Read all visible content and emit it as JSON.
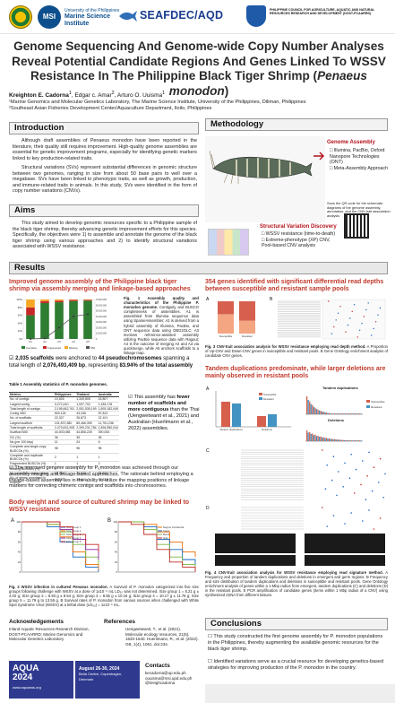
{
  "header": {
    "msi_sub": "University of the Philippines",
    "msi_name": "Marine Science Institute",
    "msi_short": "MSI",
    "seafdec": "SEAFDEC/AQD",
    "pcaarrd": "PHILIPPINE COUNCIL FOR AGRICULTURE, AQUATIC AND NATURAL RESOURCES RESEARCH AND DEVELOPMENT (DOST-PCAARRD)"
  },
  "title_main": "Genome Sequencing And Genome-wide Copy Number Analyses Reveal Potential Candidate Regions And Genes Linked To WSSV Resistance In The Philippine Black Tiger Shrimp (",
  "title_species": "Penaeus monodon",
  "title_end": ")",
  "authors": {
    "a1": "Kreighton E. Cadorna",
    "a1_sup": "1",
    "rest": ", Edgar c. Amar",
    "a2_sup": "2",
    "a3": ", Arturo O. Uuisma",
    "a3_sup": "1"
  },
  "affiliations": [
    "¹Marine Genomics and Molecular Genetics Laboratory, The Marine Science Institute, University of the Philippines, Diliman, Philippines",
    "²Southeast Asian Fisheries Development Center/Aquaculture Department, Iloilo, Philippines"
  ],
  "intro": {
    "heading": "Introduction",
    "p1": "Although draft assemblies of Penaeus monodon have been reported in the literature, their quality still requires improvement. High-quality genome assemblies are essential for genetic improvement programs, especially for identifying genetic markers linked to key production-related traits.",
    "p2": "Structural variations (SVs) represent substantial differences in genomic structure between two genomes, ranging in size from about 50 base pairs to well over a megabase. SVs have been linked to phenotypic traits, as well as growth, production, and immune-related traits in animals. In this study, SVs were identified in the form of copy number variations (CNVs)."
  },
  "aims": {
    "heading": "Aims",
    "p1": "This study aimed to develop genomic resources specific to a Philippine sample of the black tiger shrimp, thereby advancing genetic improvement efforts for this species. Specifically, the objectives were 1) to assemble and annotate the genome of the black tiger shrimp using various approaches and 2) to identify structural variations associated with WSSV resistance."
  },
  "methodology": {
    "heading": "Methodology",
    "genome_assembly": "Genome Assembly",
    "ga_items": [
      "Illumina, PacBio, Oxford Nanopore Technologies (ONT)",
      "Meta-Assembly Approach"
    ],
    "sv_detection": "Structural Variation Discovery",
    "sv_items": [
      "WSSV resistance (time-to-death)",
      "Extreme-phenotype (XP) CNV, Pool-based CNV analysis"
    ],
    "qr_note": "Scan the QR code for the schematic diagrams of the genome assembly, annotation, and the CNV-trait association analysis"
  },
  "results": {
    "heading": "Results",
    "sub1": "Improved genome assembly of the Philippine black tiger shrimp via assembly merging and linkage-based approaches",
    "fig1_cap_b": "Fig. 1 Assembly quality and characteristics of the Philippine P. monodon genome.",
    "fig1_cap": "Contiguity and BUSCO completeness of assemblies. A1 is assembled from Illumina sequence data using SparseAssembler; A2 is derived from a hybrid assembly of Illumina, PacBio, and ONT sequence data using DBG2OLC; A3 involves reference-assisted assembly utilizing PacBio sequence data with Ragout; A4 is the outcome of merging A2 and A3 via quickmerge, while A5 anchors scaffolds to a linkage map.",
    "stat1_pre": "2,035 scaffolds",
    "stat1_mid": " were anchored to ",
    "stat1_b2": "44 pseudochromosomes",
    "stat1_mid2": " spanning a total length of ",
    "stat1_b3": "2,076,493,409 bp",
    "stat1_mid3": ", representing ",
    "stat1_b4": "83.94% of the total assembly",
    "table_title": "Table 1 Assembly statistics of P. monodon genomes.",
    "table_headers": [
      "Metrics",
      "Philippines",
      "Thailand",
      "Australia"
    ],
    "table_rows": [
      [
        "No. of contigs",
        "10,526",
        "1,349,805",
        "43,807"
      ],
      [
        "Largest contig",
        "3,272,440",
        "1,097,702",
        "1,183,178"
      ],
      [
        "Total length of contigs",
        "2,195,662,761",
        "2,051,535,199",
        "1,893,182,049"
      ],
      [
        "Contig N50",
        "500,126",
        "43,336",
        "87,812"
      ],
      [
        "No. of scaffolds",
        "22,327",
        "26,873",
        "22,101"
      ],
      [
        "Largest scaffold",
        "131,870,380",
        "85,466,359",
        "11,751,236"
      ],
      [
        "Total length of scaffolds",
        "2,473,631,905",
        "2,390,231,784",
        "1,894,550,044"
      ],
      [
        "Scaffold N50",
        "44,000,085",
        "44,856,225",
        "390,054"
      ],
      [
        "GC (%)",
        "36",
        "35",
        "36"
      ],
      [
        "Ns (per 100 kbp)",
        "11",
        "24",
        "6"
      ],
      [
        "Complete and single-copy BUSCOs (%)",
        "98",
        "96",
        "95"
      ],
      [
        "Complete and duplicate BUSCOs (%)",
        "2",
        "1",
        "1"
      ],
      [
        "Fragmented BUSCOs (%)",
        "1",
        "1",
        "2"
      ],
      [
        "Missing BUSCOs (%)",
        "0",
        "1",
        "1"
      ],
      [
        "No. of protein-coding genes",
        "36,154",
        "25,948",
        "23,609"
      ],
      [
        "No. of genes annotated in Uniprot",
        "24,287",
        "20,610",
        "17,338"
      ]
    ],
    "fewer_pre": "This assembly has ",
    "fewer_b": "fewer number of scaffolds and more contiguous",
    "fewer_post": " than the Thai (Uengwetwanit et al., 2021) and Australian (Huerlimann et al., 2022) assemblies.",
    "improved_text": "The improved genome assembly for P. monodon was achieved through our assembly merging and linkage-based approaches. The rationale behind employing a linkage-based assembly lies in the ability to utilize the mapping positions of linkage markers for correcting chimeric contigs and scaffolds into chromosomes.",
    "sub2": "Body weight and source of cultured shrimp may be linked to WSSV resistance",
    "fig2_cap_b": "Fig. 2 WSSV infection in cultured Penaeus monodon.",
    "fig2_cap": "A Survival of P. monodon categorized into five size groups following challenge with WSSV at a dose of 1x10⁻⁵ mL LD₅₀ was not determined. Size group 1 = 5.21 g ± 4.02 g; Size group 2 = 6.93 g ± 8.54 g; Size group 3 = 8.55 g ± 10.16 g; Size group 4 = 10.17 g ± 11.78 g; Size group 5 = 11.79 g to 13.55 g. B Survival rates of P. monodon from various sources when challenged with White Spot Syndrome Virus (WSSV) at a lethal dose (LD₅₀) = 1x10⁻⁵ mL.",
    "sub3": "354 genes identified with significant differential read depths between susceptible and resistant sample pools",
    "fig3_cap_b": "Fig. 3 CNV-trait association analysis for WSSV resistance employing read depth method.",
    "fig3_cap": "A Proportion of Up-CNV and Down-CNV genes in susceptible and resistant pools. B Gene Ontology enrichment analysis of candidate CNV genes.",
    "sub4": "Tandem duplications predominate, while larger deletions are mainly observed in resistant pools",
    "tandem_label": "Tandem duplications",
    "deletions_label": "Deletions",
    "susceptible": "Susceptible",
    "resistant": "Resistant",
    "fig4_cap_b": "Fig. 4 CNV-trait association analysis for WSSV resistance employing read signature method.",
    "fig4_cap": "A Frequency and proportion of tandem duplications and deletions in emergent and germ regions. B Frequency and size distribution of tandem duplications and deletions in susceptible and resistant pools. Gene Ontology enrichment analysis of genes within a 1-Mbp radius from emergent, tandem duplications (C) and deletions (D) in the resistant pools. E PCR amplification of candidate genes (items within 1 Mbp radius of a CNV) using synthesized cDNA from different tissues."
  },
  "ack": {
    "heading": "Acknowledgements",
    "text": "Inland Aquatic Resources Research Division, DOST-PCAARRD; Marine Genomics and Molecular Genetics Laboratory"
  },
  "refs": {
    "heading": "References",
    "text": "Uengwetwanit, T., et al. (2021). Molecular ecology resources, 21(5), 1620-1640. Huerlimann, R., et al. (2022). GB, 1(4), 1061. doi:234."
  },
  "contacts": {
    "heading": "Contacts",
    "email": "kecadorna@up.edu.ph",
    "email2": "ouuisma@msi.upd.edu.ph",
    "handle": "@kreighcadorna"
  },
  "aqua": {
    "title": "AQUA 2024",
    "sub": "www.aquaeas.org",
    "dates": "August 26-30, 2024",
    "place": "Bella Centre, Copenhagen, Denmark"
  },
  "conclusions": {
    "heading": "Conclusions",
    "items": [
      "This study constructed the first genome assembly for P. monodon populations in the Philippines, thereby augmenting the available genomic resources for the black tiger shrimp.",
      "Identified variations serve as a crucial resource for developing genetics-based strategies for improving production of the P. monodon in the country."
    ]
  },
  "chart_data": [
    {
      "type": "bar",
      "title": "",
      "categories": [
        "A1",
        "A2",
        "A3",
        "A4",
        "A5"
      ],
      "series": [
        {
          "name": "Complete",
          "values": [
            60,
            91,
            93,
            96,
            97
          ]
        },
        {
          "name": "Fragmented",
          "values": [
            20,
            5,
            4,
            3,
            2
          ]
        },
        {
          "name": "Missing",
          "values": [
            20,
            4,
            3,
            1,
            1
          ]
        }
      ],
      "series2": {
        "name": "N50",
        "values": [
          2000,
          1000000,
          20000000,
          40000000,
          44000085
        ]
      },
      "ylim": [
        0,
        100
      ],
      "y2lim": [
        0,
        70000000
      ],
      "y_ticks": [
        "0%",
        "20%",
        "40%",
        "60%",
        "80%",
        "100%"
      ],
      "y2_ticks": [
        "0",
        "10,000,000",
        "20,000,000",
        "30,000,000",
        "40,000,000",
        "50,000,000",
        "60,000,000",
        "70,000,000"
      ],
      "legend": [
        "Complete",
        "Fragmented",
        "Missing",
        "N50"
      ],
      "legend_position": "bottom"
    },
    {
      "type": "line",
      "title": "",
      "panel": "A",
      "xlabel": "",
      "ylabel": "",
      "series": [
        {
          "name": "Size Group 1",
          "values": [
            100,
            100,
            90,
            60,
            30,
            10,
            0
          ]
        },
        {
          "name": "Size Group 2",
          "values": [
            100,
            100,
            95,
            70,
            40,
            15,
            5
          ]
        },
        {
          "name": "Size Group 3",
          "values": [
            100,
            100,
            95,
            80,
            55,
            30,
            15
          ]
        },
        {
          "name": "Size Group 4",
          "values": [
            100,
            100,
            100,
            85,
            65,
            45,
            25
          ]
        },
        {
          "name": "Size Group 5",
          "values": [
            100,
            100,
            100,
            90,
            75,
            55,
            40
          ]
        }
      ],
      "ylim": [
        0,
        100
      ]
    },
    {
      "type": "line",
      "title": "",
      "panel": "B",
      "series": [
        {
          "name": "Negros Occidental",
          "values": [
            100,
            100,
            95,
            80,
            60,
            40,
            30
          ]
        },
        {
          "name": "Capiz",
          "values": [
            100,
            100,
            90,
            65,
            45,
            25,
            15
          ]
        },
        {
          "name": "Bohol",
          "values": [
            100,
            100,
            85,
            55,
            30,
            15,
            5
          ]
        },
        {
          "name": "Iloilo",
          "values": [
            100,
            95,
            75,
            45,
            20,
            10,
            0
          ]
        }
      ],
      "ylim": [
        0,
        100
      ]
    },
    {
      "type": "bar",
      "title": "",
      "panel": "A",
      "categories": [
        "Susceptible",
        "Resistant"
      ],
      "series": [
        {
          "name": "Down-CNV",
          "values": [
            60,
            40
          ]
        },
        {
          "name": "Up-CNV",
          "values": [
            40,
            60
          ]
        }
      ],
      "ylim": [
        0,
        100
      ]
    },
    {
      "type": "bar",
      "title": "",
      "panel": "A",
      "categories": [
        "Tandem duplications",
        "Deletions"
      ],
      "series": [
        {
          "name": "Susceptible",
          "values": [
            70,
            30
          ]
        },
        {
          "name": "Resistant",
          "values": [
            65,
            35
          ]
        }
      ],
      "ylim": [
        0,
        100
      ]
    }
  ]
}
